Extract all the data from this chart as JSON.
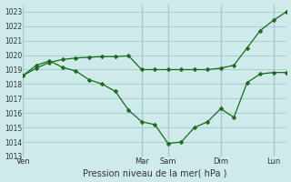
{
  "bg_color": "#ceeaea",
  "grid_color": "#a8cccc",
  "line_color": "#1a6b1a",
  "xlabel": "Pression niveau de la mer( hPa )",
  "ylim": [
    1013,
    1023.5
  ],
  "yticks": [
    1013,
    1014,
    1015,
    1016,
    1017,
    1018,
    1019,
    1020,
    1021,
    1022,
    1023
  ],
  "xtick_labels": [
    "Ven",
    "Mar",
    "Sam",
    "Dim",
    "Lun"
  ],
  "xtick_positions": [
    0,
    9,
    11,
    15,
    19
  ],
  "vline_positions": [
    0,
    9,
    11,
    15,
    19
  ],
  "total_xlim": [
    0,
    20
  ],
  "line1_x": [
    0,
    1,
    2,
    3,
    4,
    5,
    6,
    7,
    8,
    9,
    10,
    11,
    12,
    13,
    14,
    15,
    16,
    17,
    18,
    19,
    20
  ],
  "line1_y": [
    1018.6,
    1019.3,
    1019.6,
    1019.15,
    1018.9,
    1018.3,
    1018.0,
    1017.5,
    1016.2,
    1015.4,
    1015.2,
    1013.9,
    1014.0,
    1015.0,
    1015.4,
    1016.3,
    1015.7,
    1018.1,
    1018.7,
    1018.8,
    1018.8
  ],
  "line2_x": [
    0,
    1,
    2,
    3,
    4,
    5,
    6,
    7,
    8,
    9,
    10,
    11,
    12,
    13,
    14,
    15,
    16,
    17,
    18,
    19,
    20
  ],
  "line2_y": [
    1018.6,
    1019.1,
    1019.5,
    1019.7,
    1019.8,
    1019.85,
    1019.9,
    1019.9,
    1019.95,
    1019.0,
    1019.0,
    1019.0,
    1019.0,
    1019.0,
    1019.0,
    1019.1,
    1019.3,
    1020.5,
    1021.7,
    1022.4,
    1023.0
  ]
}
